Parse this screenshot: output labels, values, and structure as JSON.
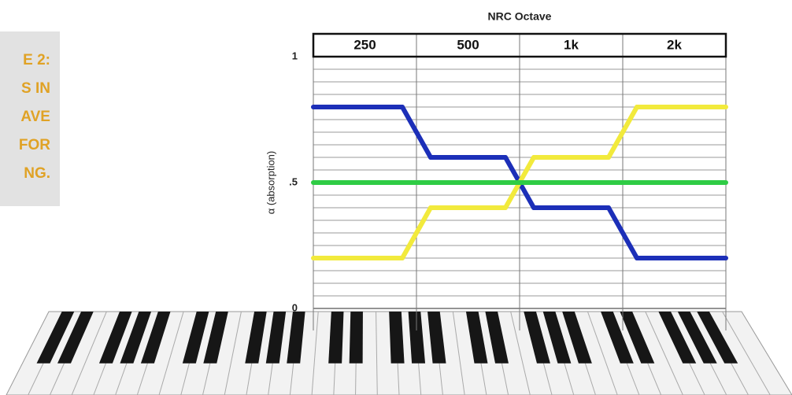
{
  "sidebar": {
    "lines": [
      "E 2:",
      "S IN",
      "AVE",
      "FOR",
      "NG."
    ]
  },
  "chart_data": {
    "type": "line",
    "title": "NRC Octave",
    "y_label": "α (absorption)",
    "categories": [
      "250",
      "500",
      "1k",
      "2k"
    ],
    "series": [
      {
        "color": "#1c2fb8",
        "values": [
          0.8,
          0.6,
          0.4,
          0.2
        ]
      },
      {
        "color": "#f2ea3c",
        "values": [
          0.2,
          0.4,
          0.6,
          0.8
        ]
      },
      {
        "color": "#2fcc45",
        "values": [
          0.5,
          0.5,
          0.5,
          0.5
        ]
      }
    ],
    "ylim": [
      0,
      1
    ],
    "yticks": [
      0,
      {
        "value": 0.5,
        "label": ".5"
      },
      1
    ],
    "grid": true
  }
}
